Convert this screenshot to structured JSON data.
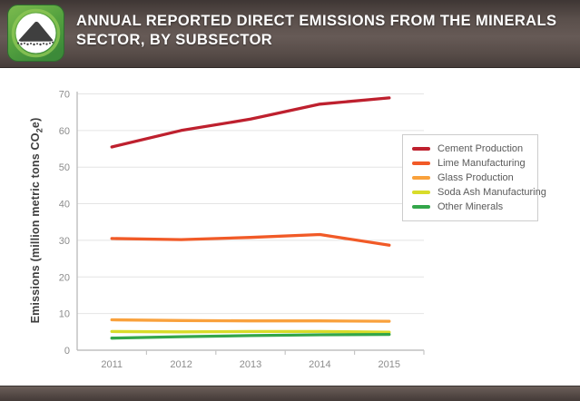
{
  "header": {
    "title_lines": [
      "ANNUAL REPORTED DIRECT EMISSIONS FROM THE MINERALS",
      "SECTOR, BY SUBSECTOR"
    ],
    "icon": "minerals-pile-icon"
  },
  "colors": {
    "header_bar": "#5a4f4b",
    "footer_bar": "#554a46",
    "icon_green_light": "#7cbb4e",
    "icon_green_dark": "#3c8a39",
    "axis_line": "#b5b5b5",
    "gridline": "#e4e4e4",
    "tick_mark": "#c6c6c6",
    "tick_label": "#8c8c8c",
    "axis_title": "#3e3e3e",
    "legend_text": "#5a5a5a",
    "legend_border": "#cccccc",
    "plot_background": "#ffffff"
  },
  "chart_data": {
    "type": "line",
    "title": "ANNUAL REPORTED DIRECT EMISSIONS FROM THE MINERALS SECTOR, BY SUBSECTOR",
    "xlabel": "",
    "ylabel": "Emissions (million metric tons CO2e)",
    "ylabel_parts": {
      "pre": "Emissions (million metric tons CO",
      "sub": "2",
      "post": "e)"
    },
    "x": [
      "2011",
      "2012",
      "2013",
      "2014",
      "2015"
    ],
    "ylim": [
      0,
      70
    ],
    "yticks": [
      0,
      10,
      20,
      30,
      40,
      50,
      60,
      70
    ],
    "grid": true,
    "legend_position": "right-inside",
    "series": [
      {
        "name": "Cement Production",
        "color": "#be202e",
        "values": [
          55.5,
          60.0,
          63.1,
          67.2,
          68.9
        ]
      },
      {
        "name": "Lime Manufacturing",
        "color": "#f15a27",
        "values": [
          30.5,
          30.2,
          30.8,
          31.6,
          28.7
        ]
      },
      {
        "name": "Glass Production",
        "color": "#f9a13c",
        "values": [
          8.3,
          8.1,
          8.0,
          8.0,
          7.9
        ]
      },
      {
        "name": "Soda Ash Manufacturing",
        "color": "#d8dc2a",
        "values": [
          5.1,
          5.0,
          5.1,
          5.1,
          4.9
        ]
      },
      {
        "name": "Other Minerals",
        "color": "#33a64a",
        "values": [
          3.3,
          3.7,
          4.0,
          4.2,
          4.3
        ]
      }
    ]
  }
}
